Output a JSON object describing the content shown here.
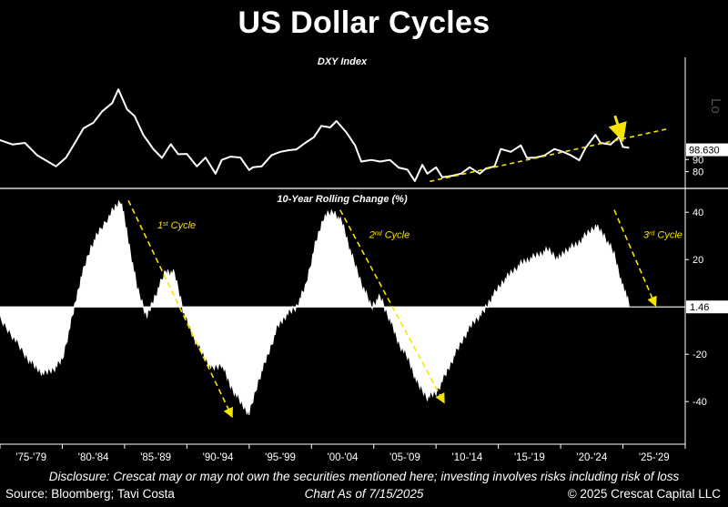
{
  "title": "US Dollar Cycles",
  "footer": {
    "disclosure": "Disclosure: Crescat may or may not own the securities mentioned here; investing involves risks including risk of loss",
    "source": "Source: Bloomberg; Tavi Costa",
    "as_of": "Chart As of 7/15/2025",
    "copyright": "© 2025 Crescat Capital LLC"
  },
  "colors": {
    "background": "#000000",
    "line": "#ffffff",
    "accent": "#f5e400"
  },
  "chart_data": [
    {
      "type": "line",
      "title": "DXY Index",
      "x_unit": "year",
      "xlim": [
        1975,
        2030
      ],
      "ylim": [
        70,
        165
      ],
      "yticks": [
        80,
        90
      ],
      "last_value_label": "98.630",
      "partial_axis_label": "Lo",
      "x": [
        1975.0,
        1976.0,
        1977.0,
        1978.0,
        1978.8,
        1979.5,
        1980.3,
        1981.0,
        1981.7,
        1982.5,
        1983.2,
        1984.0,
        1984.5,
        1985.2,
        1985.8,
        1986.5,
        1987.3,
        1988.0,
        1988.7,
        1989.3,
        1990.0,
        1990.8,
        1991.5,
        1992.3,
        1992.8,
        1993.5,
        1994.3,
        1995.0,
        1995.3,
        1996.0,
        1996.8,
        1997.5,
        1998.2,
        1998.8,
        1999.5,
        2000.2,
        2000.8,
        2001.5,
        2002.0,
        2002.8,
        2003.5,
        2004.0,
        2004.8,
        2005.5,
        2006.3,
        2007.0,
        2007.7,
        2008.3,
        2008.9,
        2009.3,
        2010.0,
        2010.5,
        2011.3,
        2012.0,
        2012.7,
        2013.5,
        2014.0,
        2014.7,
        2015.2,
        2016.0,
        2016.8,
        2017.3,
        2018.0,
        2018.7,
        2019.5,
        2020.2,
        2020.8,
        2021.5,
        2022.0,
        2022.8,
        2023.2,
        2024.0,
        2024.7,
        2025.0,
        2025.5
      ],
      "y": [
        106,
        104,
        102,
        95,
        87,
        86,
        90,
        105,
        114,
        122,
        128,
        138,
        146,
        133,
        124,
        112,
        97,
        93,
        101,
        96,
        93,
        86,
        90,
        80,
        88,
        94,
        90,
        83,
        82,
        86,
        92,
        98,
        96,
        100,
        102,
        110,
        116,
        118,
        120,
        114,
        100,
        90,
        88,
        90,
        88,
        85,
        80,
        74,
        84,
        80,
        82,
        77,
        75,
        80,
        82,
        80,
        81,
        86,
        97,
        98,
        100,
        93,
        90,
        95,
        97,
        98,
        92,
        91,
        98,
        112,
        102,
        104,
        107,
        102,
        98
      ],
      "trend": {
        "x": [
          2009.5,
          2028.5
        ],
        "y": [
          72,
          115
        ]
      },
      "arrow_marker": true
    },
    {
      "type": "area",
      "title": "10-Year Rolling Change (%)",
      "x_unit": "year",
      "xlim": [
        1975,
        2030
      ],
      "ylim": [
        -48,
        47
      ],
      "yticks": [
        40,
        20,
        -20,
        -40
      ],
      "tick_labels": [
        "'75-'79",
        "'80-'84",
        "'85-'89",
        "'90-'94",
        "'95-'99",
        "'00-'04",
        "'05-'09",
        "'10-'14",
        "'15-'19",
        "'20-'24",
        "'25-'29"
      ],
      "last_value_label": "1.46",
      "x": [
        1975.0,
        1976.0,
        1977.0,
        1977.8,
        1978.5,
        1979.3,
        1980.0,
        1980.8,
        1981.5,
        1982.3,
        1983.0,
        1984.0,
        1984.7,
        1985.3,
        1986.0,
        1986.8,
        1987.5,
        1988.3,
        1989.0,
        1989.8,
        1990.5,
        1991.3,
        1992.0,
        1992.8,
        1993.5,
        1994.3,
        1995.0,
        1995.8,
        1996.5,
        1997.3,
        1998.0,
        1998.8,
        1999.5,
        2000.3,
        2001.0,
        2001.8,
        2002.5,
        2003.2,
        2004.0,
        2004.8,
        2005.5,
        2006.3,
        2007.0,
        2007.8,
        2008.5,
        2009.3,
        2010.0,
        2010.8,
        2011.5,
        2012.3,
        2013.0,
        2013.8,
        2014.5,
        2015.3,
        2016.0,
        2016.8,
        2017.5,
        2018.3,
        2019.0,
        2019.8,
        2020.5,
        2021.3,
        2022.0,
        2022.8,
        2023.5,
        2024.3,
        2025.0,
        2025.5
      ],
      "y": [
        -5,
        -12,
        -20,
        -25,
        -28,
        -26,
        -22,
        -4,
        12,
        25,
        32,
        40,
        45,
        28,
        8,
        -4,
        5,
        15,
        14,
        -3,
        -12,
        -20,
        -26,
        -24,
        -33,
        -40,
        -45,
        -30,
        -20,
        -8,
        -3,
        0,
        8,
        26,
        38,
        40,
        35,
        22,
        10,
        0,
        4,
        -5,
        -15,
        -22,
        -32,
        -38,
        -36,
        -28,
        -20,
        -12,
        -6,
        -2,
        4,
        10,
        14,
        18,
        20,
        22,
        24,
        20,
        24,
        26,
        30,
        34,
        30,
        22,
        8,
        2
      ],
      "annotations": [
        {
          "label": "st",
          "base": "1",
          "suffix": " Cycle",
          "x0": 1985.3,
          "y0": 45,
          "x1": 1993.5,
          "y1": -45
        },
        {
          "label": "nd",
          "base": "2",
          "suffix": " Cycle",
          "x0": 2002.3,
          "y0": 41,
          "x1": 2010.5,
          "y1": -39
        },
        {
          "label": "rd",
          "base": "3",
          "suffix": " Cycle",
          "x0": 2024.3,
          "y0": 41,
          "x1": 2027.5,
          "y1": 2
        }
      ]
    }
  ]
}
